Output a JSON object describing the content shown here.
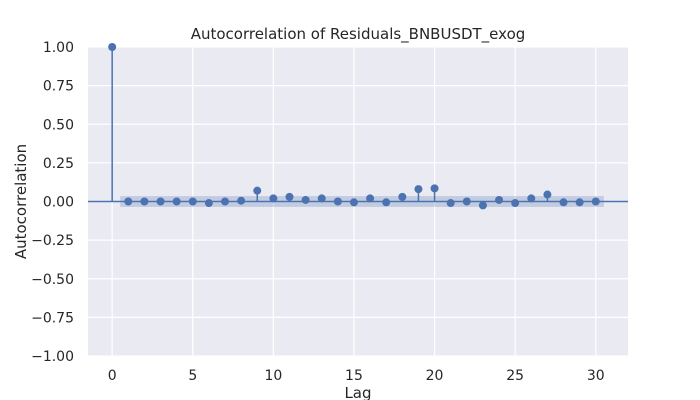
{
  "chart_data": {
    "type": "scatter",
    "subtype": "stem",
    "title": "Autocorrelation of Residuals_BNBUSDT_exog",
    "xlabel": "Lag",
    "ylabel": "Autocorrelation",
    "xlim": [
      -1.5,
      32
    ],
    "ylim": [
      -1.0,
      1.0
    ],
    "x_ticks": [
      0,
      5,
      10,
      15,
      20,
      25,
      30
    ],
    "x_tick_labels": [
      "0",
      "5",
      "10",
      "15",
      "20",
      "25",
      "30"
    ],
    "y_ticks": [
      1.0,
      0.75,
      0.5,
      0.25,
      0.0,
      -0.25,
      -0.5,
      -0.75,
      -1.0
    ],
    "y_tick_labels": [
      "1.00",
      "0.75",
      "0.50",
      "0.25",
      "0.00",
      "−0.25",
      "−0.50",
      "−0.75",
      "−1.00"
    ],
    "grid": true,
    "zero_line": true,
    "confidence_band": {
      "from_lag": 0.5,
      "to_lag": 30.5,
      "lower": -0.035,
      "upper": 0.035
    },
    "series": [
      {
        "x": [
          0,
          1,
          2,
          3,
          4,
          5,
          6,
          7,
          8,
          9,
          10,
          11,
          12,
          13,
          14,
          15,
          16,
          17,
          18,
          19,
          20,
          21,
          22,
          23,
          24,
          25,
          26,
          27,
          28,
          29,
          30
        ],
        "values": [
          1.0,
          0.0,
          0.0,
          0.0,
          0.0,
          0.0,
          -0.01,
          0.0,
          0.005,
          0.07,
          0.02,
          0.03,
          0.01,
          0.02,
          0.0,
          -0.005,
          0.02,
          -0.005,
          0.03,
          0.08,
          0.085,
          -0.01,
          0.0,
          -0.025,
          0.01,
          -0.01,
          0.02,
          0.045,
          -0.005,
          -0.005,
          0.0
        ]
      }
    ],
    "colors": {
      "background": "#eaeaf2",
      "grid": "#ffffff",
      "series": "#4c72b0",
      "band": "#4c72b0",
      "text": "#262626"
    }
  }
}
